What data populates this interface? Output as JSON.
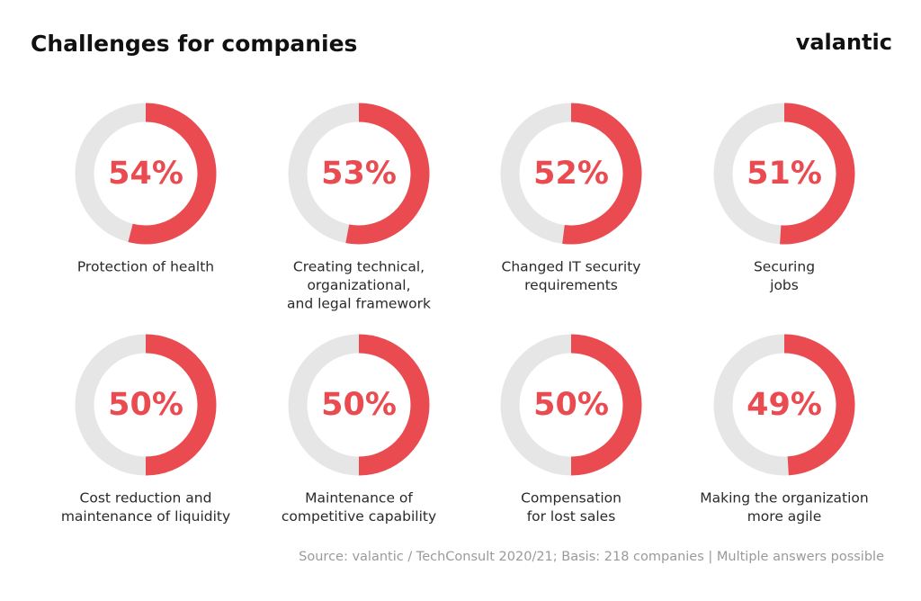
{
  "title": "Challenges for companies",
  "brand": "valantic",
  "source": "Source: valantic / TechConsult 2020/21; Basis: 218 companies | Multiple answers possible",
  "chart_data": [
    {
      "type": "donut",
      "label": [
        "Protection of health"
      ],
      "values": [
        54
      ],
      "value_labels": [
        "54%"
      ],
      "ylim": [
        0,
        100
      ],
      "color": "#e94b50",
      "track_color": "#e6e6e6"
    },
    {
      "type": "donut",
      "label": [
        "Creating technical,",
        "organizational,",
        "and legal framework"
      ],
      "values": [
        53
      ],
      "value_labels": [
        "53%"
      ],
      "ylim": [
        0,
        100
      ],
      "color": "#e94b50",
      "track_color": "#e6e6e6"
    },
    {
      "type": "donut",
      "label": [
        "Changed IT security",
        "requirements"
      ],
      "values": [
        52
      ],
      "value_labels": [
        "52%"
      ],
      "ylim": [
        0,
        100
      ],
      "color": "#e94b50",
      "track_color": "#e6e6e6"
    },
    {
      "type": "donut",
      "label": [
        "Securing",
        "jobs"
      ],
      "values": [
        51
      ],
      "value_labels": [
        "51%"
      ],
      "ylim": [
        0,
        100
      ],
      "color": "#e94b50",
      "track_color": "#e6e6e6"
    },
    {
      "type": "donut",
      "label": [
        "Cost reduction and",
        "maintenance of liquidity"
      ],
      "values": [
        50
      ],
      "value_labels": [
        "50%"
      ],
      "ylim": [
        0,
        100
      ],
      "color": "#e94b50",
      "track_color": "#e6e6e6"
    },
    {
      "type": "donut",
      "label": [
        "Maintenance of",
        "competitive capability"
      ],
      "values": [
        50
      ],
      "value_labels": [
        "50%"
      ],
      "ylim": [
        0,
        100
      ],
      "color": "#e94b50",
      "track_color": "#e6e6e6"
    },
    {
      "type": "donut",
      "label": [
        "Compensation",
        "for lost sales"
      ],
      "values": [
        50
      ],
      "value_labels": [
        "50%"
      ],
      "ylim": [
        0,
        100
      ],
      "color": "#e94b50",
      "track_color": "#e6e6e6"
    },
    {
      "type": "donut",
      "label": [
        "Making the organization",
        "more agile"
      ],
      "values": [
        49
      ],
      "value_labels": [
        "49%"
      ],
      "ylim": [
        0,
        100
      ],
      "color": "#e94b50",
      "track_color": "#e6e6e6"
    }
  ]
}
